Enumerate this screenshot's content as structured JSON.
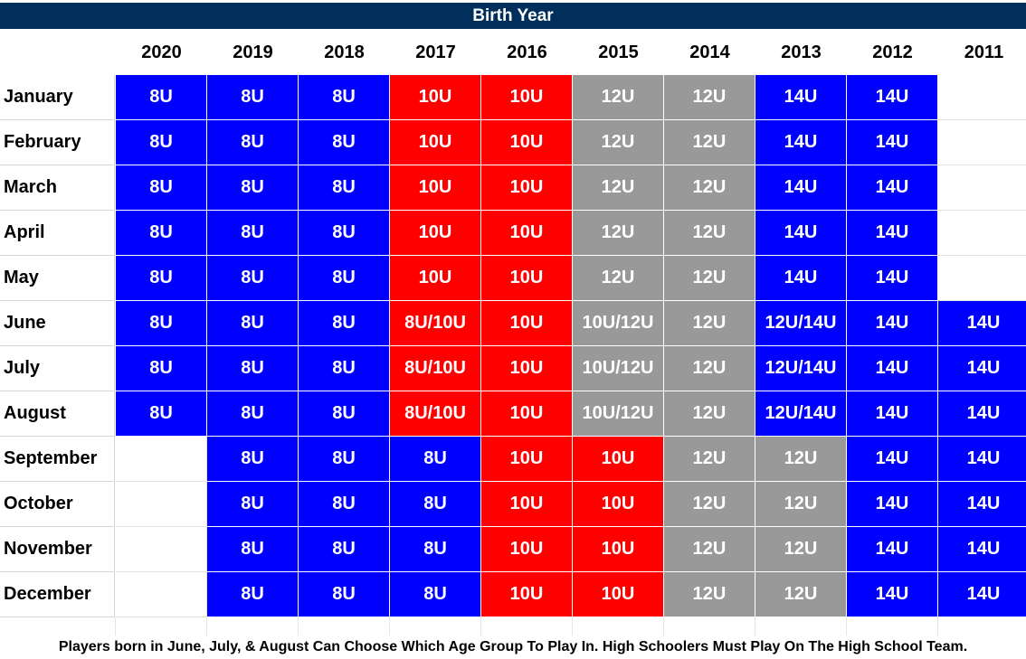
{
  "title": "Birth Year",
  "years": [
    "2020",
    "2019",
    "2018",
    "2017",
    "2016",
    "2015",
    "2014",
    "2013",
    "2012",
    "2011"
  ],
  "colors": {
    "blue": "#0000FF",
    "red": "#FF0000",
    "gray": "#999999",
    "empty": "#FFFFFF"
  },
  "rows": [
    {
      "month": "January",
      "cells": [
        [
          "8U",
          "blue"
        ],
        [
          "8U",
          "blue"
        ],
        [
          "8U",
          "blue"
        ],
        [
          "10U",
          "red"
        ],
        [
          "10U",
          "red"
        ],
        [
          "12U",
          "gray"
        ],
        [
          "12U",
          "gray"
        ],
        [
          "14U",
          "blue"
        ],
        [
          "14U",
          "blue"
        ],
        [
          "",
          "empty"
        ]
      ]
    },
    {
      "month": "February",
      "cells": [
        [
          "8U",
          "blue"
        ],
        [
          "8U",
          "blue"
        ],
        [
          "8U",
          "blue"
        ],
        [
          "10U",
          "red"
        ],
        [
          "10U",
          "red"
        ],
        [
          "12U",
          "gray"
        ],
        [
          "12U",
          "gray"
        ],
        [
          "14U",
          "blue"
        ],
        [
          "14U",
          "blue"
        ],
        [
          "",
          "empty"
        ]
      ]
    },
    {
      "month": "March",
      "cells": [
        [
          "8U",
          "blue"
        ],
        [
          "8U",
          "blue"
        ],
        [
          "8U",
          "blue"
        ],
        [
          "10U",
          "red"
        ],
        [
          "10U",
          "red"
        ],
        [
          "12U",
          "gray"
        ],
        [
          "12U",
          "gray"
        ],
        [
          "14U",
          "blue"
        ],
        [
          "14U",
          "blue"
        ],
        [
          "",
          "empty"
        ]
      ]
    },
    {
      "month": "April",
      "cells": [
        [
          "8U",
          "blue"
        ],
        [
          "8U",
          "blue"
        ],
        [
          "8U",
          "blue"
        ],
        [
          "10U",
          "red"
        ],
        [
          "10U",
          "red"
        ],
        [
          "12U",
          "gray"
        ],
        [
          "12U",
          "gray"
        ],
        [
          "14U",
          "blue"
        ],
        [
          "14U",
          "blue"
        ],
        [
          "",
          "empty"
        ]
      ]
    },
    {
      "month": "May",
      "cells": [
        [
          "8U",
          "blue"
        ],
        [
          "8U",
          "blue"
        ],
        [
          "8U",
          "blue"
        ],
        [
          "10U",
          "red"
        ],
        [
          "10U",
          "red"
        ],
        [
          "12U",
          "gray"
        ],
        [
          "12U",
          "gray"
        ],
        [
          "14U",
          "blue"
        ],
        [
          "14U",
          "blue"
        ],
        [
          "",
          "empty"
        ]
      ]
    },
    {
      "month": "June",
      "cells": [
        [
          "8U",
          "blue"
        ],
        [
          "8U",
          "blue"
        ],
        [
          "8U",
          "blue"
        ],
        [
          "8U/10U",
          "red"
        ],
        [
          "10U",
          "red"
        ],
        [
          "10U/12U",
          "gray"
        ],
        [
          "12U",
          "gray"
        ],
        [
          "12U/14U",
          "blue"
        ],
        [
          "14U",
          "blue"
        ],
        [
          "14U",
          "blue"
        ]
      ]
    },
    {
      "month": "July",
      "cells": [
        [
          "8U",
          "blue"
        ],
        [
          "8U",
          "blue"
        ],
        [
          "8U",
          "blue"
        ],
        [
          "8U/10U",
          "red"
        ],
        [
          "10U",
          "red"
        ],
        [
          "10U/12U",
          "gray"
        ],
        [
          "12U",
          "gray"
        ],
        [
          "12U/14U",
          "blue"
        ],
        [
          "14U",
          "blue"
        ],
        [
          "14U",
          "blue"
        ]
      ]
    },
    {
      "month": "August",
      "cells": [
        [
          "8U",
          "blue"
        ],
        [
          "8U",
          "blue"
        ],
        [
          "8U",
          "blue"
        ],
        [
          "8U/10U",
          "red"
        ],
        [
          "10U",
          "red"
        ],
        [
          "10U/12U",
          "gray"
        ],
        [
          "12U",
          "gray"
        ],
        [
          "12U/14U",
          "blue"
        ],
        [
          "14U",
          "blue"
        ],
        [
          "14U",
          "blue"
        ]
      ]
    },
    {
      "month": "September",
      "cells": [
        [
          "",
          "empty"
        ],
        [
          "8U",
          "blue"
        ],
        [
          "8U",
          "blue"
        ],
        [
          "8U",
          "blue"
        ],
        [
          "10U",
          "red"
        ],
        [
          "10U",
          "red"
        ],
        [
          "12U",
          "gray"
        ],
        [
          "12U",
          "gray"
        ],
        [
          "14U",
          "blue"
        ],
        [
          "14U",
          "blue"
        ]
      ]
    },
    {
      "month": "October",
      "cells": [
        [
          "",
          "empty"
        ],
        [
          "8U",
          "blue"
        ],
        [
          "8U",
          "blue"
        ],
        [
          "8U",
          "blue"
        ],
        [
          "10U",
          "red"
        ],
        [
          "10U",
          "red"
        ],
        [
          "12U",
          "gray"
        ],
        [
          "12U",
          "gray"
        ],
        [
          "14U",
          "blue"
        ],
        [
          "14U",
          "blue"
        ]
      ]
    },
    {
      "month": "November",
      "cells": [
        [
          "",
          "empty"
        ],
        [
          "8U",
          "blue"
        ],
        [
          "8U",
          "blue"
        ],
        [
          "8U",
          "blue"
        ],
        [
          "10U",
          "red"
        ],
        [
          "10U",
          "red"
        ],
        [
          "12U",
          "gray"
        ],
        [
          "12U",
          "gray"
        ],
        [
          "14U",
          "blue"
        ],
        [
          "14U",
          "blue"
        ]
      ]
    },
    {
      "month": "December",
      "cells": [
        [
          "",
          "empty"
        ],
        [
          "8U",
          "blue"
        ],
        [
          "8U",
          "blue"
        ],
        [
          "8U",
          "blue"
        ],
        [
          "10U",
          "red"
        ],
        [
          "10U",
          "red"
        ],
        [
          "12U",
          "gray"
        ],
        [
          "12U",
          "gray"
        ],
        [
          "14U",
          "blue"
        ],
        [
          "14U",
          "blue"
        ]
      ]
    }
  ],
  "footer": "Players born in June, July, & August Can Choose Which Age Group To Play In.  High Schoolers Must Play On The High School Team."
}
